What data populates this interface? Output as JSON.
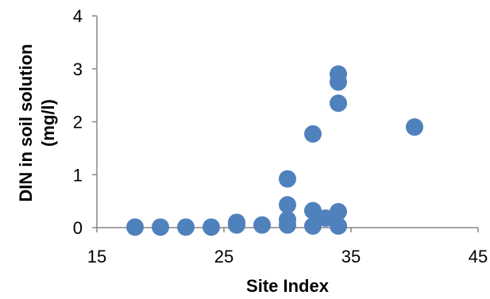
{
  "chart_data": {
    "type": "scatter",
    "title": "",
    "xlabel": "Site Index",
    "ylabel_lines": [
      "DIN in soil solution",
      "(mg/l)"
    ],
    "xlim": [
      15,
      45
    ],
    "ylim": [
      0,
      4
    ],
    "xticks": [
      15,
      25,
      35,
      45
    ],
    "yticks": [
      0,
      1,
      2,
      3,
      4
    ],
    "grid": false,
    "legend": "none",
    "marker_color": "#4F81BD",
    "axis_color": "#868686",
    "series": [
      {
        "points": [
          {
            "x": 18,
            "y": 0.01
          },
          {
            "x": 20,
            "y": 0.01
          },
          {
            "x": 22,
            "y": 0.01
          },
          {
            "x": 24,
            "y": 0.01
          },
          {
            "x": 26,
            "y": 0.05
          },
          {
            "x": 26,
            "y": 0.1
          },
          {
            "x": 28,
            "y": 0.05
          },
          {
            "x": 30,
            "y": 0.05
          },
          {
            "x": 30,
            "y": 0.15
          },
          {
            "x": 30,
            "y": 0.43
          },
          {
            "x": 30,
            "y": 0.92
          },
          {
            "x": 32,
            "y": 0.03
          },
          {
            "x": 32,
            "y": 0.32
          },
          {
            "x": 32,
            "y": 1.77
          },
          {
            "x": 33,
            "y": 0.18
          },
          {
            "x": 34,
            "y": 0.03
          },
          {
            "x": 34,
            "y": 0.3
          },
          {
            "x": 34,
            "y": 2.35
          },
          {
            "x": 34,
            "y": 2.75
          },
          {
            "x": 34,
            "y": 2.9
          },
          {
            "x": 40,
            "y": 1.9
          }
        ]
      }
    ]
  }
}
